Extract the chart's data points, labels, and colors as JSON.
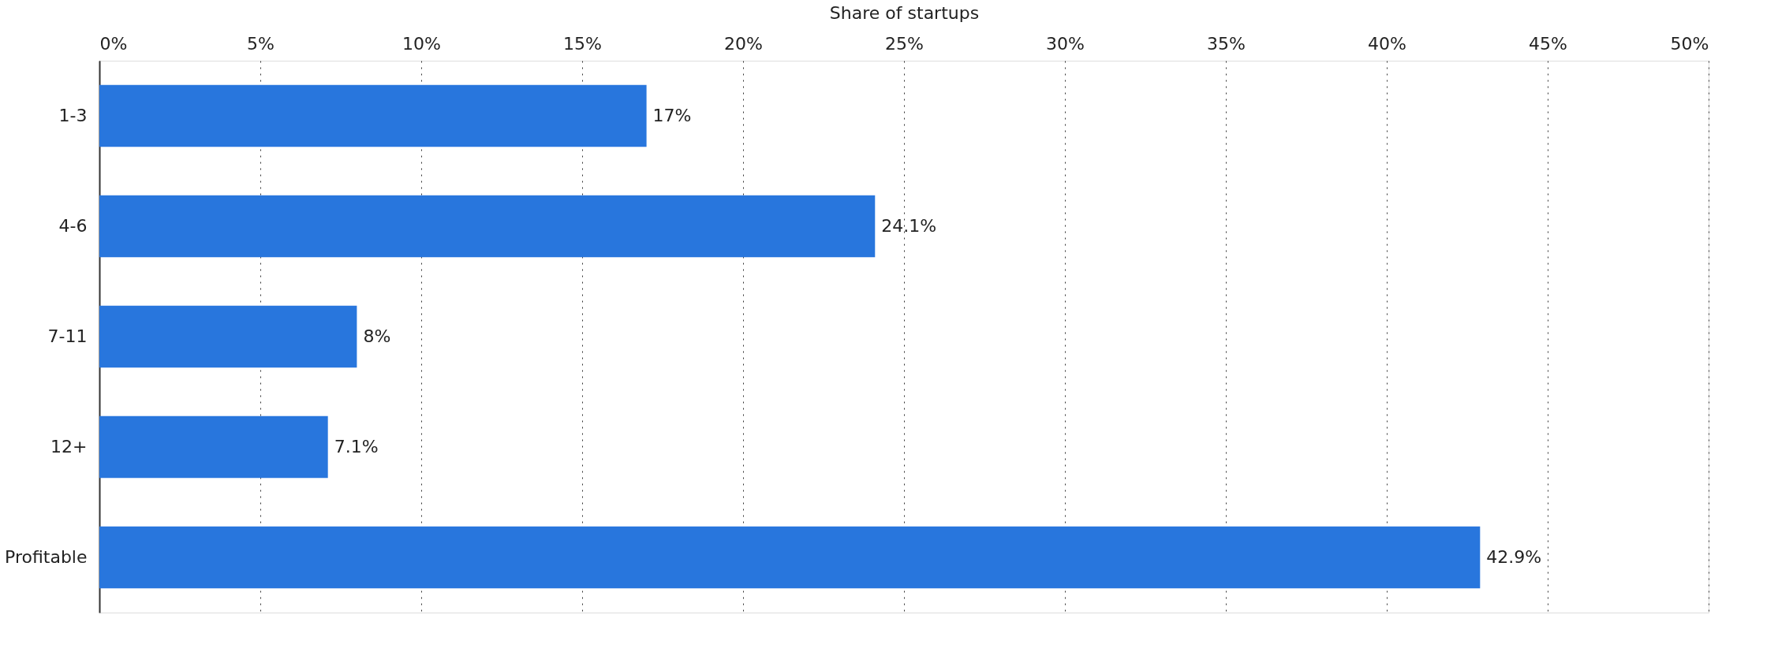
{
  "chart_data": {
    "type": "bar",
    "orientation": "horizontal",
    "xlabel": "Share of startups",
    "categories": [
      "1-3",
      "4-6",
      "7-11",
      "12+",
      "Profitable"
    ],
    "values": [
      17,
      24.1,
      8,
      7.1,
      42.9
    ],
    "value_labels": [
      "17%",
      "24.1%",
      "8%",
      "7.1%",
      "42.9%"
    ],
    "color": "#2876dd",
    "xlim": [
      0,
      50
    ],
    "xticks": [
      {
        "value": 0,
        "label": "0%"
      },
      {
        "value": 5,
        "label": "5%"
      },
      {
        "value": 10,
        "label": "10%"
      },
      {
        "value": 15,
        "label": "15%"
      },
      {
        "value": 20,
        "label": "20%"
      },
      {
        "value": 25,
        "label": "25%"
      },
      {
        "value": 30,
        "label": "30%"
      },
      {
        "value": 35,
        "label": "35%"
      },
      {
        "value": 40,
        "label": "40%"
      },
      {
        "value": 45,
        "label": "45%"
      },
      {
        "value": 50,
        "label": "50%"
      }
    ],
    "grid": "x"
  }
}
